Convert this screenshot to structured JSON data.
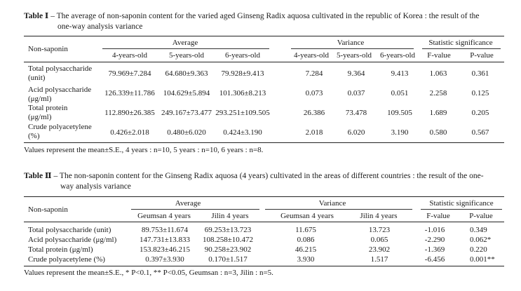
{
  "table1": {
    "label": "Table Ⅰ",
    "caption_line1": "– The average of non-saponin content for the varied aged Ginseng Radix aquosa cultivated in the republic of Korea : the result of the",
    "caption_line2": "one-way analysis variance",
    "header": {
      "row_label": "Non-saponin",
      "average": "Average",
      "variance": "Variance",
      "significance": "Statistic  significance",
      "avg_cols": [
        "4-years-old",
        "5-years-old",
        "6-years-old"
      ],
      "var_cols": [
        "4-years-old",
        "5-years-old",
        "6-years-old"
      ],
      "sig_cols": [
        "F-value",
        "P-value"
      ]
    },
    "rows": [
      {
        "label1": "Total polysaccharide",
        "label2": "(unit)",
        "avg": [
          "79.969±7.284",
          "64.680±9.363",
          "79.928±9.413"
        ],
        "var": [
          "7.284",
          "9.364",
          "9.413"
        ],
        "f": "1.063",
        "p": "0.361"
      },
      {
        "label1": "Acid polysaccharide",
        "label2": "(μg/ml)",
        "avg": [
          "126.339±11.786",
          "104.629±5.894",
          "101.306±8.213"
        ],
        "var": [
          "0.073",
          "0.037",
          "0.051"
        ],
        "f": "2.258",
        "p": "0.125"
      },
      {
        "label1": "Total protein",
        "label2": "(μg/ml)",
        "avg": [
          "112.890±26.385",
          "249.167±73.477",
          "293.251±109.505"
        ],
        "var": [
          "26.386",
          "73.478",
          "109.505"
        ],
        "f": "1.689",
        "p": "0.205"
      },
      {
        "label1": "Crude polyacetylene",
        "label2": "(%)",
        "avg": [
          "0.426±2.018",
          "0.480±6.020",
          "0.424±3.190"
        ],
        "var": [
          "2.018",
          "6.020",
          "3.190"
        ],
        "f": "0.580",
        "p": "0.567"
      }
    ],
    "note": "Values represent the mean±S.E., 4 years : n=10, 5 years : n=10, 6 years : n=8."
  },
  "table2": {
    "label": "Table Ⅱ",
    "caption_line1": "– The non-saponin content for the Ginseng Radix aquosa (4 years) cultivated in the areas of different countries : the result of the one-",
    "caption_line2": "way analysis variance",
    "header": {
      "row_label": "Non-saponin",
      "average": "Average",
      "variance": "Variance",
      "significance": "Statistic  significance",
      "avg_cols": [
        "Geumsan 4 years",
        "Jilin 4 years"
      ],
      "var_cols": [
        "Geumsan 4 years",
        "Jilin 4 years"
      ],
      "sig_cols": [
        "F-value",
        "P-value"
      ]
    },
    "rows": [
      {
        "label": "Total polysaccharide (unit)",
        "avg": [
          "89.753±11.674",
          "69.253±13.723"
        ],
        "var": [
          "11.675",
          "13.723"
        ],
        "f": "-1.016",
        "p": "0.349"
      },
      {
        "label": "Acid polysaccharide (μg/ml)",
        "avg": [
          "147.731±13.833",
          "108.258±10.472"
        ],
        "var": [
          "0.086",
          "0.065"
        ],
        "f": "-2.290",
        "p": "0.062*"
      },
      {
        "label": "Total protein (μg/ml)",
        "avg": [
          "153.823±46.215",
          "90.258±23.902"
        ],
        "var": [
          "46.215",
          "23.902"
        ],
        "f": "-1.369",
        "p": "0.220"
      },
      {
        "label": "Crude polyacetylene (%)",
        "avg": [
          "0.397±3.930",
          "0.170±1.517"
        ],
        "var": [
          "3.930",
          "1.517"
        ],
        "f": "-6.456",
        "p": "0.001**"
      }
    ],
    "note": "Values represent the mean±S.E., * P<0.1, ** P<0.05, Geumsan : n=3, Jilin : n=5."
  }
}
